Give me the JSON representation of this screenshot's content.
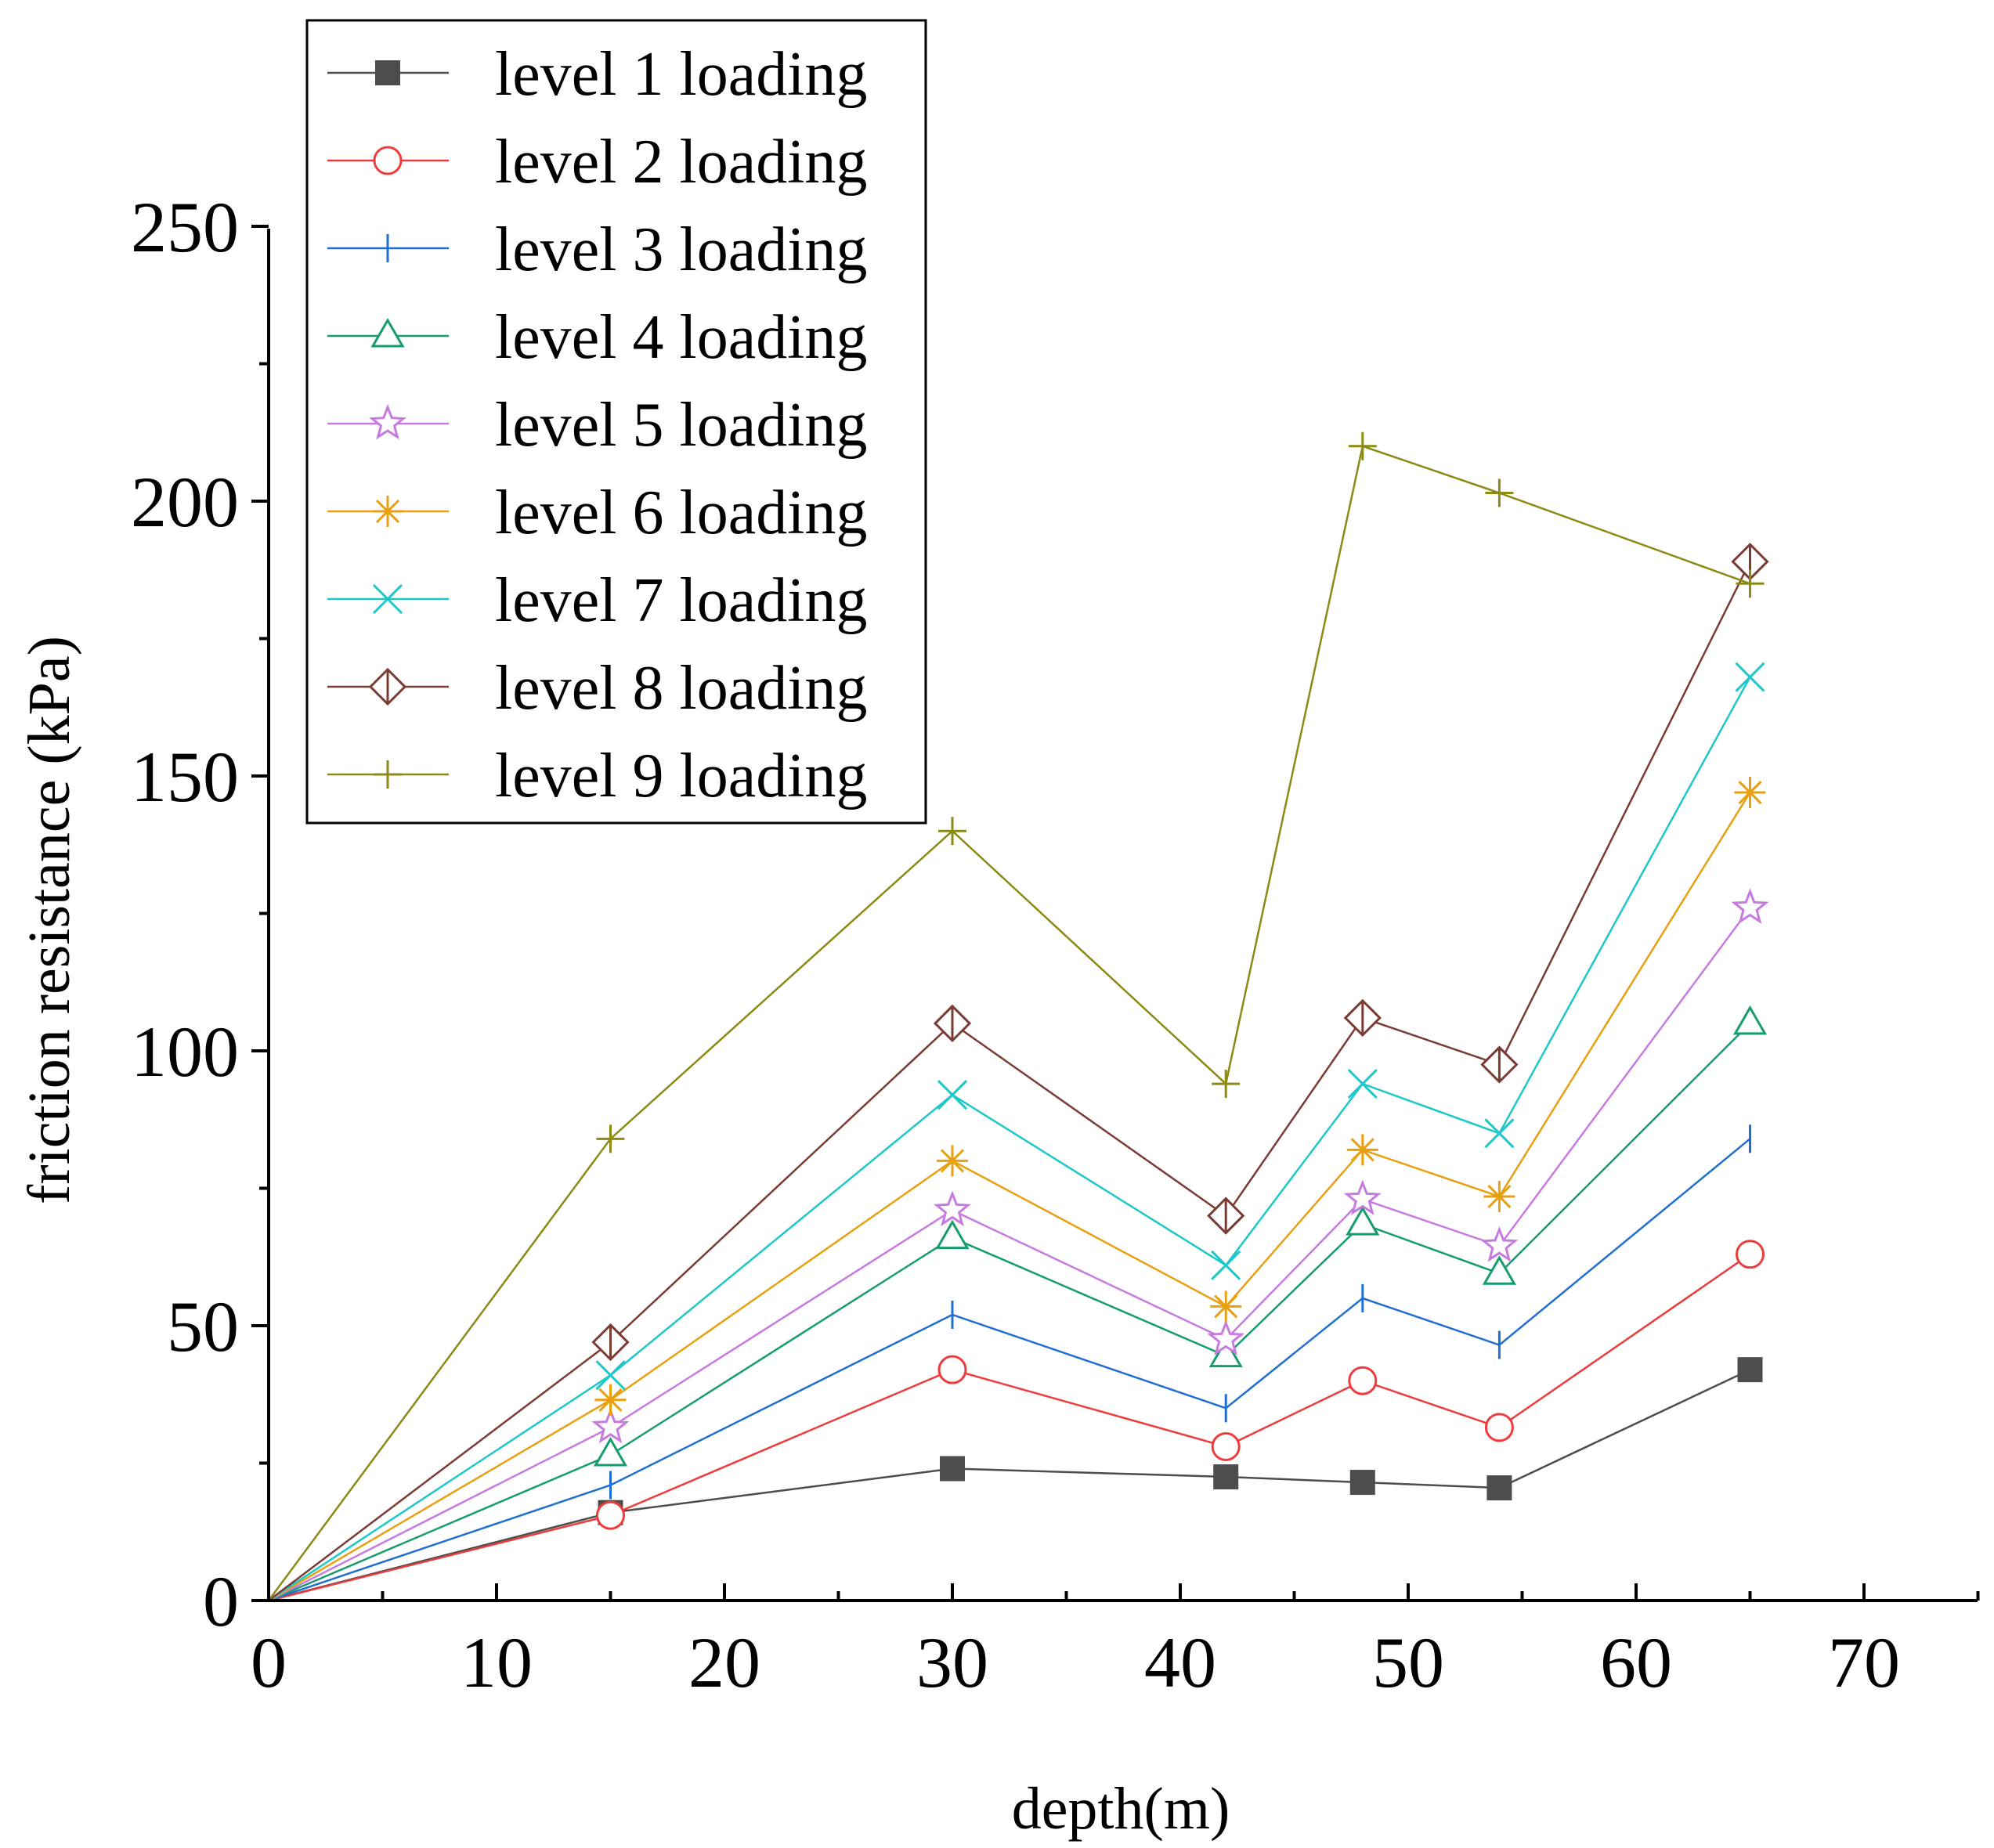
{
  "chart_data": {
    "type": "line",
    "title": "",
    "xlabel": "depth(m)",
    "ylabel": "friction resistance (kPa)",
    "xlim": [
      0,
      75
    ],
    "ylim": [
      0,
      250
    ],
    "x_ticks": [
      0,
      10,
      20,
      30,
      40,
      50,
      60,
      70
    ],
    "y_ticks": [
      0,
      50,
      100,
      150,
      200,
      250
    ],
    "x_tick_labels": [
      "0",
      "10",
      "20",
      "30",
      "40",
      "50",
      "60",
      "70"
    ],
    "y_tick_labels": [
      "0",
      "50",
      "100",
      "150",
      "200",
      "250"
    ],
    "legend_position": "top-left",
    "x": [
      0,
      15,
      30,
      42,
      48,
      54,
      65
    ],
    "series": [
      {
        "name": "level 1 loading",
        "color": "#4d4d4d",
        "marker": "filled-square",
        "values": [
          0,
          16,
          24,
          22.5,
          21.5,
          20.5,
          42
        ]
      },
      {
        "name": "level 2 loading",
        "color": "#ee3b3b",
        "marker": "open-circle",
        "values": [
          0,
          15.5,
          42,
          28,
          40,
          31.5,
          63
        ]
      },
      {
        "name": "level 3 loading",
        "color": "#1f6fd1",
        "marker": "vertical-tick",
        "values": [
          0,
          21,
          52,
          35,
          55,
          46.5,
          84
        ]
      },
      {
        "name": "level 4 loading",
        "color": "#169c6e",
        "marker": "open-triangle",
        "values": [
          0,
          26.5,
          66,
          44.5,
          68.5,
          59.5,
          105
        ]
      },
      {
        "name": "level 5 loading",
        "color": "#c77ae0",
        "marker": "open-star",
        "values": [
          0,
          31.5,
          71,
          47.5,
          73,
          64.5,
          126
        ]
      },
      {
        "name": "level 6 loading",
        "color": "#e8a010",
        "marker": "asterisk",
        "values": [
          0,
          36.5,
          80,
          53.5,
          82,
          73.5,
          147
        ]
      },
      {
        "name": "level 7 loading",
        "color": "#1ec8c8",
        "marker": "x-cross",
        "values": [
          0,
          41,
          92,
          61,
          94,
          85,
          168
        ]
      },
      {
        "name": "level 8 loading",
        "color": "#7a3b32",
        "marker": "half-diamond",
        "values": [
          0,
          47,
          105,
          70,
          106,
          97.5,
          189
        ]
      },
      {
        "name": "level 9 loading",
        "color": "#8a8a14",
        "marker": "plus",
        "values": [
          0,
          84,
          140,
          94,
          210,
          201.5,
          185
        ]
      }
    ]
  }
}
